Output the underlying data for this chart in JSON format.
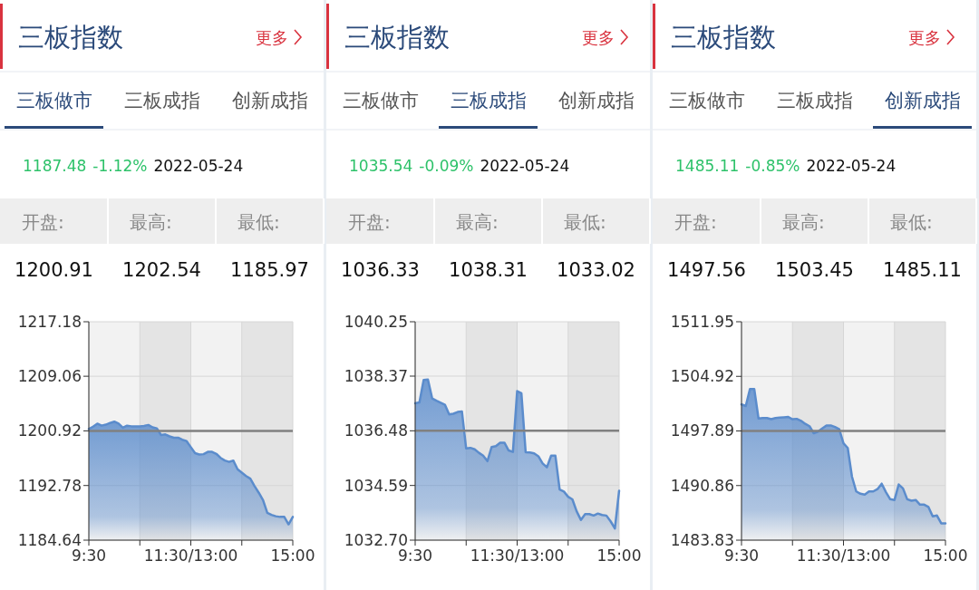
{
  "chart_data": [
    {
      "type": "area",
      "title": "三板指数",
      "annotations": [
        "更多",
        "三板做市",
        "三板成指",
        "创新成指",
        "1187.48",
        "-1.12%",
        "2022-05-24",
        "开盘:",
        "最高:",
        "最低:",
        "1200.91",
        "1202.54",
        "1185.97"
      ],
      "categories": [
        "9:30",
        null,
        null,
        null,
        null,
        null,
        null,
        null,
        null,
        null,
        null,
        null,
        null,
        null,
        null,
        null,
        null,
        null,
        null,
        null,
        null,
        null,
        null,
        null,
        "11:30/13:00",
        null,
        null,
        null,
        null,
        null,
        null,
        null,
        null,
        null,
        null,
        null,
        null,
        null,
        null,
        null,
        null,
        null,
        null,
        null,
        null,
        null,
        null,
        null,
        "15:00"
      ],
      "ylim": [
        1184.64,
        1217.18
      ],
      "yticks": [
        1184.64,
        1192.78,
        {
          "value": 1200.92,
          "label": "1200.92"
        },
        1209.06,
        1217.18
      ],
      "grid": true,
      "ref_lines": [
        {
          "axis": "y",
          "value": 1200.92,
          "color": "#808080"
        }
      ],
      "series": [
        {
          "color": "#5b8ccc",
          "values": [
            1201.2,
            1201.55,
            1202.0,
            1201.7,
            1201.85,
            1202.1,
            1202.3,
            1202.0,
            1201.4,
            1201.7,
            1201.6,
            1201.6,
            1201.6,
            1201.65,
            1201.8,
            1201.45,
            1201.3,
            1200.3,
            1200.4,
            1200.1,
            1199.9,
            1199.9,
            1199.6,
            1199.4,
            1198.5,
            1197.6,
            1197.4,
            1197.45,
            1197.8,
            1197.8,
            1197.5,
            1196.9,
            1196.5,
            1196.3,
            1196.5,
            1195.2,
            1194.7,
            1194.2,
            1193.8,
            1192.7,
            1191.7,
            1190.6,
            1188.7,
            1188.4,
            1188.2,
            1188.1,
            1188.1,
            1187.0,
            1188.1
          ]
        }
      ]
    },
    {
      "type": "area",
      "title": "三板指数",
      "annotations": [
        "更多",
        "三板做市",
        "三板成指",
        "创新成指",
        "1035.54",
        "-0.09%",
        "2022-05-24",
        "开盘:",
        "最高:",
        "最低:",
        "1036.33",
        "1038.31",
        "1033.02"
      ],
      "categories": [
        "9:30",
        null,
        null,
        null,
        null,
        null,
        null,
        null,
        null,
        null,
        null,
        null,
        null,
        null,
        null,
        null,
        null,
        null,
        null,
        null,
        null,
        null,
        null,
        null,
        "11:30/13:00",
        null,
        null,
        null,
        null,
        null,
        null,
        null,
        null,
        null,
        null,
        null,
        null,
        null,
        null,
        null,
        null,
        null,
        null,
        null,
        null,
        null,
        null,
        null,
        "15:00"
      ],
      "ylim": [
        1032.7,
        1040.25
      ],
      "yticks": [
        {
          "value": 1032.7,
          "label": "1032.70"
        },
        1034.59,
        1036.48,
        1038.37,
        1040.25
      ],
      "grid": true,
      "ref_lines": [
        {
          "axis": "y",
          "value": 1036.48,
          "color": "#808080"
        }
      ],
      "series": [
        {
          "color": "#5b8ccc",
          "values": [
            1037.43,
            1037.46,
            1038.24,
            1038.25,
            1037.6,
            1037.52,
            1037.45,
            1037.38,
            1037.05,
            1037.07,
            1037.13,
            1037.15,
            1035.87,
            1035.89,
            1035.84,
            1035.72,
            1035.62,
            1035.43,
            1035.92,
            1035.95,
            1036.07,
            1036.07,
            1035.8,
            1035.75,
            1037.85,
            1037.78,
            1035.74,
            1035.73,
            1035.7,
            1035.6,
            1035.35,
            1035.22,
            1035.62,
            1035.62,
            1034.45,
            1034.38,
            1034.2,
            1034.11,
            1033.7,
            1033.4,
            1033.6,
            1033.6,
            1033.55,
            1033.62,
            1033.57,
            1033.55,
            1033.35,
            1033.1,
            1034.41
          ]
        }
      ]
    },
    {
      "type": "area",
      "title": "三板指数",
      "annotations": [
        "更多",
        "三板做市",
        "三板成指",
        "创新成指",
        "1485.11",
        "-0.85%",
        "2022-05-24",
        "开盘:",
        "最高:",
        "最低:",
        "1497.56",
        "1503.45",
        "1485.11"
      ],
      "categories": [
        "9:30",
        null,
        null,
        null,
        null,
        null,
        null,
        null,
        null,
        null,
        null,
        null,
        null,
        null,
        null,
        null,
        null,
        null,
        null,
        null,
        null,
        null,
        null,
        null,
        "11:30/13:00",
        null,
        null,
        null,
        null,
        null,
        null,
        null,
        null,
        null,
        null,
        null,
        null,
        null,
        null,
        null,
        null,
        null,
        null,
        null,
        null,
        null,
        null,
        null,
        "15:00"
      ],
      "ylim": [
        1483.83,
        1511.95
      ],
      "yticks": [
        1483.83,
        1490.86,
        1497.89,
        1504.92,
        1511.95
      ],
      "grid": true,
      "ref_lines": [
        {
          "axis": "y",
          "value": 1497.89,
          "color": "#808080"
        }
      ],
      "series": [
        {
          "color": "#5b8ccc",
          "values": [
            1501.3,
            1501.1,
            1503.3,
            1503.3,
            1499.5,
            1499.55,
            1499.55,
            1499.4,
            1499.55,
            1499.6,
            1499.65,
            1499.7,
            1499.4,
            1499.45,
            1499.2,
            1498.8,
            1498.5,
            1497.6,
            1497.8,
            1498.2,
            1498.6,
            1498.6,
            1498.4,
            1498.1,
            1496.3,
            1495.7,
            1492.0,
            1490.1,
            1489.8,
            1489.7,
            1490.1,
            1490.1,
            1490.4,
            1491.1,
            1490.0,
            1489.1,
            1489.0,
            1491.0,
            1490.5,
            1489.1,
            1488.9,
            1489.0,
            1488.4,
            1488.4,
            1488.1,
            1486.9,
            1487.0,
            1486.0,
            1486.0
          ]
        }
      ]
    }
  ]
}
